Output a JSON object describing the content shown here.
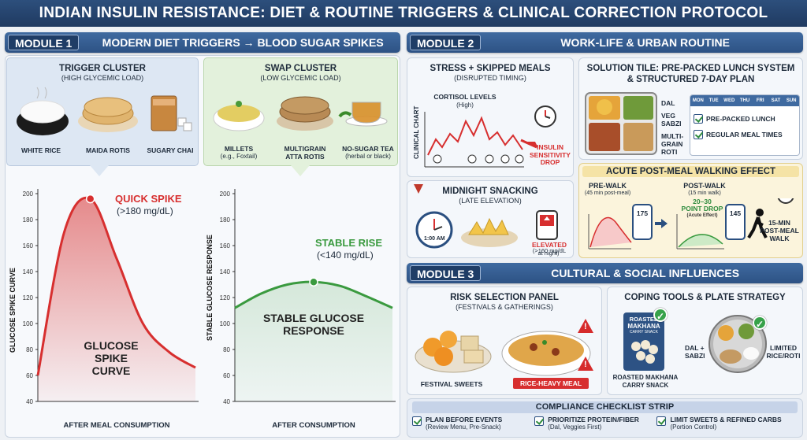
{
  "title": "INDIAN INSULIN RESISTANCE: DIET & ROUTINE TRIGGERS & CLINICAL CORRECTION PROTOCOL",
  "module1": {
    "num": "MODULE 1",
    "title": "MODERN DIET TRIGGERS → BLOOD SUGAR SPIKES",
    "trigger": {
      "head": "TRIGGER CLUSTER",
      "sub": "(HIGH GLYCEMIC LOAD)",
      "items": [
        "WHITE RICE",
        "MAIDA ROTIS",
        "SUGARY CHAI"
      ]
    },
    "swap": {
      "head": "SWAP CLUSTER",
      "sub": "(LOW GLYCEMIC LOAD)",
      "items": [
        "MILLETS",
        "MULTIGRAIN",
        "NO-SUGAR TEA"
      ],
      "items2": [
        "(e.g., Foxtail)",
        "ATTA ROTIS",
        "(herbal or black)"
      ]
    }
  },
  "chart_data": [
    {
      "type": "line",
      "ylabel": "GLUCOSE SPIKE CURVE",
      "xlabel": "AFTER MEAL CONSUMPTION",
      "yticks": [
        40,
        60,
        80,
        100,
        120,
        140,
        160,
        180,
        200
      ],
      "ylim": [
        40,
        200
      ],
      "x": [
        0,
        1,
        2,
        3,
        4,
        5,
        6
      ],
      "values": [
        60,
        170,
        196,
        150,
        100,
        78,
        66
      ],
      "peak_label": "QUICK SPIKE",
      "peak_sub": "(>180 mg/dL)",
      "area_label": [
        "GLUCOSE",
        "SPIKE",
        "CURVE"
      ],
      "color": "#d72f2f"
    },
    {
      "type": "line",
      "ylabel": "STABLE GLUCOSE RESPONSE",
      "xlabel": "AFTER CONSUMPTION",
      "yticks": [
        40,
        60,
        80,
        100,
        120,
        140,
        160,
        180,
        200
      ],
      "ylim": [
        40,
        200
      ],
      "x": [
        0,
        1,
        2,
        3,
        4,
        5,
        6
      ],
      "values": [
        112,
        123,
        130,
        132,
        129,
        121,
        112
      ],
      "peak_label": "STABLE RISE",
      "peak_sub": "(<140 mg/dL)",
      "area_label": [
        "STABLE GLUCOSE",
        "RESPONSE"
      ],
      "color": "#3a9a3f"
    }
  ],
  "module2": {
    "num": "MODULE 2",
    "title": "WORK-LIFE & URBAN ROUTINE",
    "stress": {
      "head": "STRESS + SKIPPED MEALS",
      "sub": "(DISRUPTED TIMING)",
      "cortisol": "CORTISOL LEVELS",
      "cortisol_sub": "(High)",
      "clinical": "CLINICAL CHART",
      "insulin": [
        "INSULIN",
        "SENSITIVITY",
        "DROP"
      ]
    },
    "midnight": {
      "head": "MIDNIGHT SNACKING",
      "sub": "(LATE ELEVATION)",
      "clock": "1:00 AM",
      "elevated": "ELEVATED",
      "elevated_sub": [
        "(>160 mg/dL",
        "at night)"
      ]
    },
    "solution": {
      "head": "SOLUTION TILE: PRE-PACKED LUNCH SYSTEM",
      "head2": "& STRUCTURED 7-DAY PLAN",
      "foods": [
        "DAL",
        "VEG",
        "SABZI",
        "MULTI-",
        "GRAIN",
        "ROTI"
      ],
      "days": [
        "MON",
        "TUE",
        "WED",
        "THU",
        "FRI",
        "SAT",
        "SUN"
      ],
      "checks": [
        "PRE-PACKED LUNCH",
        "REGULAR MEAL TIMES"
      ]
    },
    "walking": {
      "head": "ACUTE POST-MEAL WALKING EFFECT",
      "pre": "PRE-WALK",
      "pre_sub": "(45 min post-meal)",
      "pre_val": "175",
      "post": "POST-WALK",
      "post_sub": "(15 min walk)",
      "post_val": "145",
      "drop": "20–30",
      "drop2": "POINT DROP",
      "drop_sub": "(Acute Effect)",
      "walk": [
        "15-MIN",
        "POST-MEAL",
        "WALK"
      ]
    }
  },
  "module3": {
    "num": "MODULE 3",
    "title": "CULTURAL & SOCIAL INFLUENCES",
    "risk": {
      "head": "RISK SELECTION PANEL",
      "sub": "(FESTIVALS & GATHERINGS)",
      "items": [
        "FESTIVAL SWEETS",
        "RICE-HEAVY MEAL"
      ]
    },
    "coping": {
      "head": "COPING TOOLS & PLATE STRATEGY",
      "pack": [
        "ROASTED",
        "MAKHANA",
        "CARRY SNACK"
      ],
      "snack": [
        "ROASTED MAKHANA",
        "CARRY SNACK"
      ],
      "dal": [
        "DAL +",
        "SABZI"
      ],
      "limited": [
        "LIMITED",
        "RICE/ROTI"
      ]
    },
    "compliance": {
      "head": "COMPLIANCE CHECKLIST STRIP",
      "items": [
        {
          "t": "PLAN BEFORE EVENTS",
          "s": "(Review Menu, Pre-Snack)"
        },
        {
          "t": "PRIORITIZE PROTEIN/FIBER",
          "s": "(Dal, Veggies First)"
        },
        {
          "t": "LIMIT SWEETS & REFINED CARBS",
          "s": "(Portion Control)"
        }
      ]
    }
  }
}
